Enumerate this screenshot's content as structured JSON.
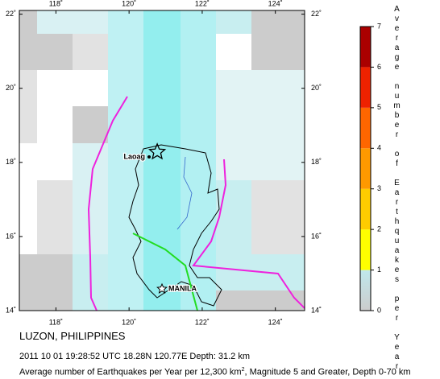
{
  "map": {
    "title": "LUZON, PHILIPPINES",
    "event": "2011 10 01 19:28:52 UTC 18.28N 120.77E Depth: 31.2 km",
    "caption_before": "Average number of Earthquakes per Year per 12,300 km",
    "caption_sup": "2",
    "caption_after": ", Magnitude 5 and Greater, Depth 0-70 km",
    "places": [
      "Laoag",
      "MANILA"
    ],
    "epicenter": {
      "lat": 18.28,
      "lon": 120.77
    },
    "xlim": [
      117,
      124.8
    ],
    "ylim": [
      14,
      22.1
    ],
    "xticks": [
      {
        "value": 118,
        "label": "118˚"
      },
      {
        "value": 120,
        "label": "120˚"
      },
      {
        "value": 122,
        "label": "122˚"
      },
      {
        "value": 124,
        "label": "124˚"
      }
    ],
    "yticks": [
      {
        "value": 14,
        "label": "14˚"
      },
      {
        "value": 16,
        "label": "16˚"
      },
      {
        "value": 18,
        "label": "18˚"
      },
      {
        "value": 20,
        "label": "20˚"
      },
      {
        "value": 22,
        "label": "22˚"
      }
    ],
    "colorbar": {
      "label": "Average number of Earthquakes per Year",
      "lim": [
        0,
        7
      ],
      "ticks": [
        0,
        1,
        2,
        3,
        4,
        5,
        6,
        7
      ],
      "colors": [
        "#bfe8ec",
        "#ffff00",
        "#ffcc00",
        "#ff9900",
        "#ff6600",
        "#ee2200",
        "#aa0000"
      ]
    }
  }
}
